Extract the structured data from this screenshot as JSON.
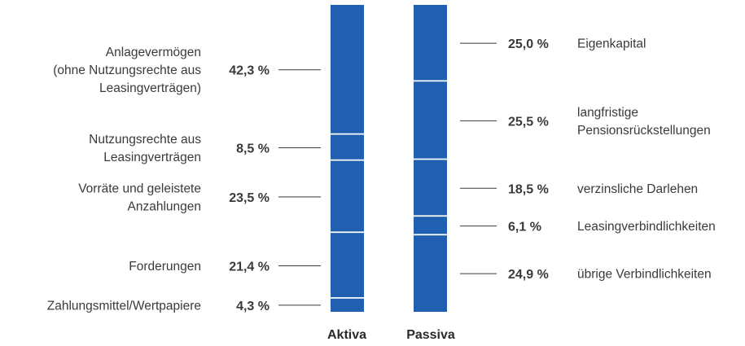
{
  "chart_data": {
    "type": "bar",
    "subtype": "stacked-100",
    "columns": [
      {
        "name": "Aktiva",
        "segments": [
          {
            "label_lines": [
              "Anlagevermögen",
              "(ohne Nutzungsrechte aus",
              "Leasingverträgen)"
            ],
            "percent_label": "42,3 %",
            "value": 42.3
          },
          {
            "label_lines": [
              "Nutzungsrechte aus",
              "Leasingverträgen"
            ],
            "percent_label": "8,5 %",
            "value": 8.5
          },
          {
            "label_lines": [
              "Vorräte und geleistete",
              "Anzahlungen"
            ],
            "percent_label": "23,5 %",
            "value": 23.5
          },
          {
            "label_lines": [
              "Forderungen"
            ],
            "percent_label": "21,4 %",
            "value": 21.4
          },
          {
            "label_lines": [
              "Zahlungsmittel/Wertpapiere"
            ],
            "percent_label": "4,3 %",
            "value": 4.3
          }
        ]
      },
      {
        "name": "Passiva",
        "segments": [
          {
            "label_lines": [
              "Eigenkapital"
            ],
            "percent_label": "25,0 %",
            "value": 25.0
          },
          {
            "label_lines": [
              "langfristige",
              "Pensionsrückstellungen"
            ],
            "percent_label": "25,5 %",
            "value": 25.5
          },
          {
            "label_lines": [
              "verzinsliche Darlehen"
            ],
            "percent_label": "18,5 %",
            "value": 18.5
          },
          {
            "label_lines": [
              "Leasingverbindlichkeiten"
            ],
            "percent_label": "6,1 %",
            "value": 6.1
          },
          {
            "label_lines": [
              "übrige Verbindlichkeiten"
            ],
            "percent_label": "24,9 %",
            "value": 24.9
          }
        ]
      }
    ],
    "colors": {
      "bar": "#2160b0",
      "separator": "#ffffff",
      "leader": "#3a3a3a"
    },
    "grid": false,
    "legend": "none"
  }
}
